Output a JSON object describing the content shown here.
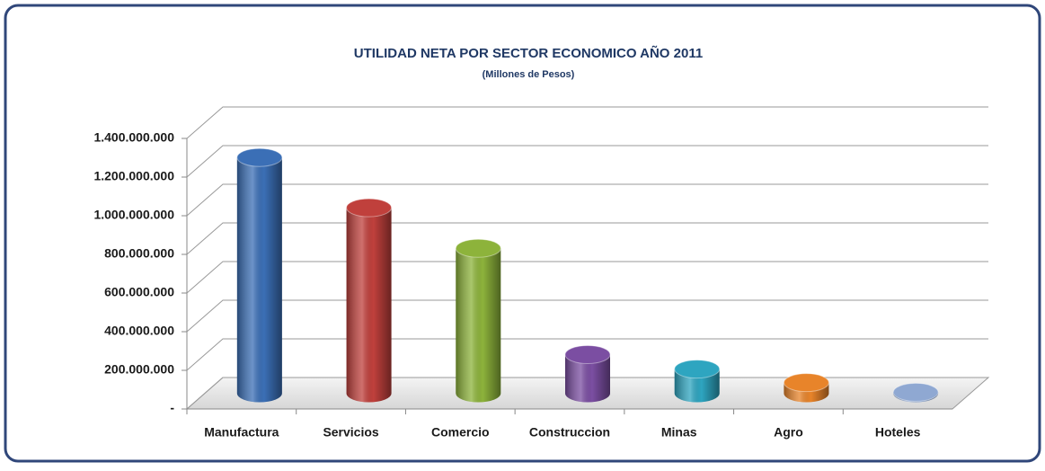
{
  "chart_data": {
    "type": "bar",
    "title": "UTILIDAD NETA POR SECTOR ECONOMICO AÑO 2011",
    "subtitle": "(Millones de Pesos)",
    "categories": [
      "Manufactura",
      "Servicios",
      "Comercio",
      "Construccion",
      "Minas",
      "Agro",
      "Hoteles"
    ],
    "values": [
      1220000000,
      960000000,
      750000000,
      200000000,
      125000000,
      55000000,
      5000000
    ],
    "colors": [
      "#3b6fb6",
      "#c0403c",
      "#8db33b",
      "#7b4ea2",
      "#2ea5c0",
      "#e8842a",
      "#8fa8d2"
    ],
    "ylim": [
      0,
      1400000000
    ],
    "yticks": [
      {
        "value": 0,
        "label": "-"
      },
      {
        "value": 200000000,
        "label": "200.000.000"
      },
      {
        "value": 400000000,
        "label": "400.000.000"
      },
      {
        "value": 600000000,
        "label": "600.000.000"
      },
      {
        "value": 800000000,
        "label": "800.000.000"
      },
      {
        "value": 1000000000,
        "label": "1.000.000.000"
      },
      {
        "value": 1200000000,
        "label": "1.200.000.000"
      },
      {
        "value": 1400000000,
        "label": "1.400.000.000"
      }
    ],
    "grid": true
  }
}
